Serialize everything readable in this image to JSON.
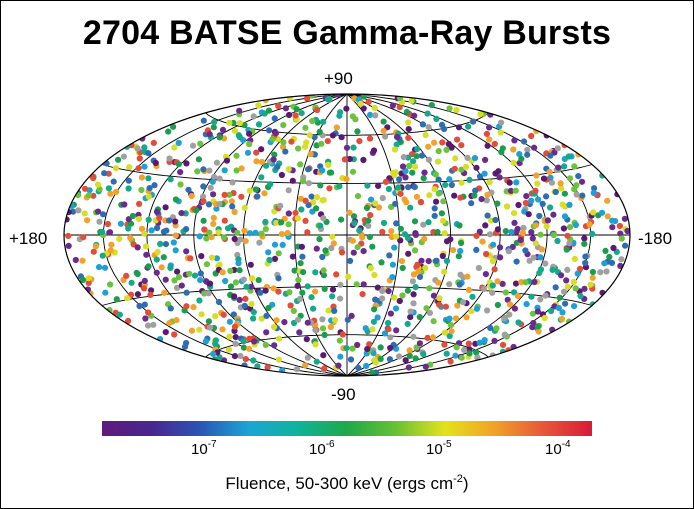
{
  "title": "2704 BATSE Gamma-Ray Bursts",
  "map": {
    "projection": "Hammer-Aitoff",
    "grid": true,
    "labels": {
      "north": "+90",
      "south": "-90",
      "left": "+180",
      "right": "-180"
    },
    "point_count": 2704
  },
  "colorbar": {
    "ticks": [
      {
        "base": "10",
        "exp": "-7"
      },
      {
        "base": "10",
        "exp": "-6"
      },
      {
        "base": "10",
        "exp": "-5"
      },
      {
        "base": "10",
        "exp": "-4"
      }
    ],
    "label_main": "Fluence, 50-300 keV (ergs cm",
    "label_exp": "-2",
    "label_end": ")",
    "colors": [
      "#5e1b7a",
      "#4a2590",
      "#2a55b5",
      "#1aa6d4",
      "#10b39a",
      "#1fa84a",
      "#66c233",
      "#e4e21a",
      "#f0a326",
      "#e7573a",
      "#d81b37"
    ]
  },
  "point_colors": [
    "#5b1a72",
    "#6a2b8c",
    "#1f9fd5",
    "#13a98a",
    "#1b9d4d",
    "#6bc23c",
    "#d8de25",
    "#f2a22a",
    "#e14d3a",
    "#a0a0a0",
    "#2f6db3"
  ]
}
